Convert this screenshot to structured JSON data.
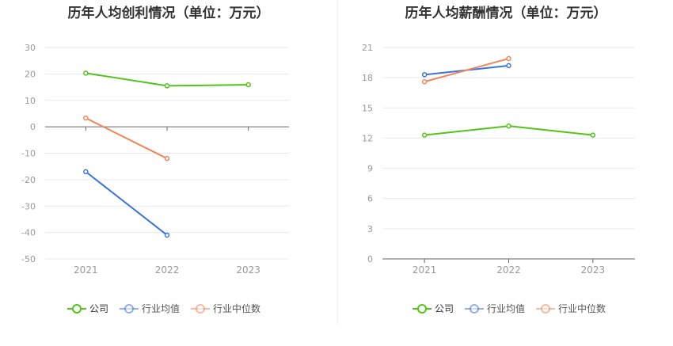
{
  "colors": {
    "company": "#52c41a",
    "industry_avg": "#3b74d9",
    "industry_median": "#f0845c",
    "grid": "#e6e9f0",
    "axis": "#666666",
    "tick_text": "#999999"
  },
  "chart_data": [
    {
      "type": "line",
      "title": "历年人均创利情况（单位：万元）",
      "categories": [
        "2021",
        "2022",
        "2023"
      ],
      "ylim": [
        -50,
        30
      ],
      "yticks": [
        "30",
        "20",
        "10",
        "0",
        "-10",
        "-20",
        "-30",
        "-40",
        "-50"
      ],
      "grid": true,
      "legend_position": "bottom-center",
      "series": [
        {
          "name": "公司",
          "values": [
            20.3,
            15.5,
            15.9
          ]
        },
        {
          "name": "行业均值",
          "values": [
            -17.0,
            -41.0,
            null
          ]
        },
        {
          "name": "行业中位数",
          "values": [
            3.3,
            -12.0,
            null
          ]
        }
      ]
    },
    {
      "type": "line",
      "title": "历年人均薪酬情况（单位：万元）",
      "categories": [
        "2021",
        "2022",
        "2023"
      ],
      "ylim": [
        0,
        21
      ],
      "yticks": [
        "21",
        "18",
        "15",
        "12",
        "9",
        "6",
        "3",
        "0"
      ],
      "grid": true,
      "legend_position": "bottom-center",
      "series": [
        {
          "name": "公司",
          "values": [
            12.3,
            13.2,
            12.3
          ]
        },
        {
          "name": "行业均值",
          "values": [
            18.3,
            19.2,
            null
          ]
        },
        {
          "name": "行业中位数",
          "values": [
            17.6,
            19.9,
            null
          ]
        }
      ]
    }
  ]
}
